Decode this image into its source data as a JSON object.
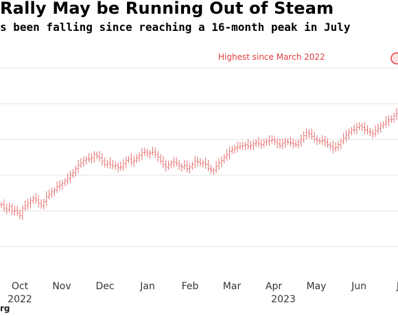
{
  "title": "Rally May be Running Out of Steam",
  "subtitle": "s been falling since reaching a 16-month peak in July",
  "source": "rg",
  "colors": {
    "bar": "#e36c6c",
    "annotation": "#e23b3b",
    "grid": "#e3e3e3"
  },
  "chart_data": {
    "type": "ohlc",
    "title": "Rally May be Running Out of Steam",
    "subtitle": "s been falling since reaching a 16-month peak in July",
    "xlabel": "",
    "ylabel": "",
    "grid": true,
    "x_tick_labels": [
      "Oct",
      "Nov",
      "Dec",
      "Jan",
      "Feb",
      "Mar",
      "Apr",
      "May",
      "Jun",
      "J"
    ],
    "year_labels": [
      "2022",
      "2023"
    ],
    "annotation": {
      "text": "Highest since March 2022",
      "marker": "circle"
    },
    "series": [
      {
        "values": [
          64,
          60,
          58,
          62,
          56,
          57,
          54,
          51,
          60,
          63,
          66,
          69,
          72,
          70,
          66,
          63,
          68,
          74,
          77,
          80,
          82,
          86,
          88,
          90,
          93,
          96,
          100,
          103,
          108,
          112,
          115,
          118,
          120,
          119,
          121,
          125,
          123,
          121,
          117,
          113,
          115,
          113,
          111,
          112,
          109,
          110,
          114,
          118,
          120,
          116,
          118,
          121,
          124,
          127,
          128,
          126,
          127,
          128,
          125,
          122,
          117,
          113,
          110,
          113,
          115,
          116,
          114,
          111,
          110,
          112,
          108,
          110,
          113,
          117,
          116,
          114,
          115,
          113,
          108,
          106,
          106,
          111,
          115,
          118,
          122,
          125,
          129,
          131,
          133,
          134,
          135,
          136,
          137,
          135,
          136,
          138,
          140,
          138,
          137,
          140,
          141,
          142,
          143,
          141,
          138,
          136,
          139,
          141,
          140,
          139,
          138,
          137,
          140,
          143,
          148,
          152,
          150,
          147,
          144,
          142,
          141,
          142,
          140,
          137,
          135,
          132,
          134,
          137,
          141,
          145,
          149,
          152,
          155,
          155,
          158,
          160,
          158,
          155,
          153,
          152,
          150,
          154,
          157,
          160,
          162,
          165,
          167,
          168,
          172,
          175
        ]
      }
    ]
  }
}
